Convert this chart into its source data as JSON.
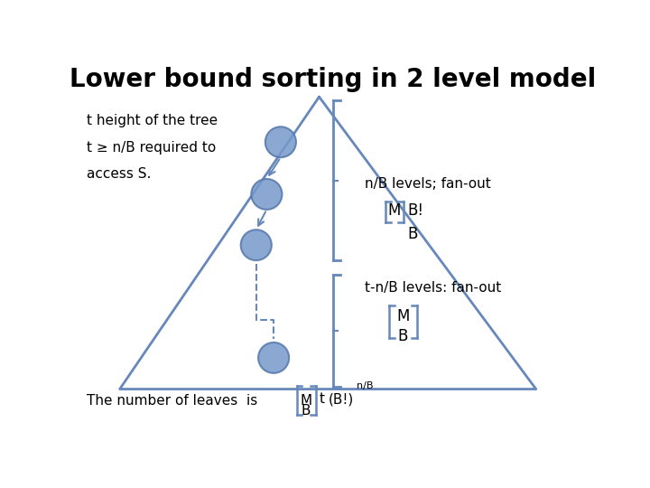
{
  "title": "Lower bound sorting in 2 level model",
  "title_fontsize": 20,
  "bg_color": "#ffffff",
  "triangle_color": "#6688bb",
  "triangle_lw": 2.0,
  "node_facecolor": "#7799cc",
  "node_edgecolor": "#5577aa",
  "bracket_color": "#6688bb",
  "text_color": "#000000",
  "left_text": [
    "t height of the tree",
    "t ≥ n/B required to",
    "access S."
  ],
  "right_text_top": "n/B levels; fan-out",
  "right_text_bot": "t-n/B levels: fan-out",
  "bottom_text": "The number of leaves  is",
  "font_family": "Comic Sans MS"
}
